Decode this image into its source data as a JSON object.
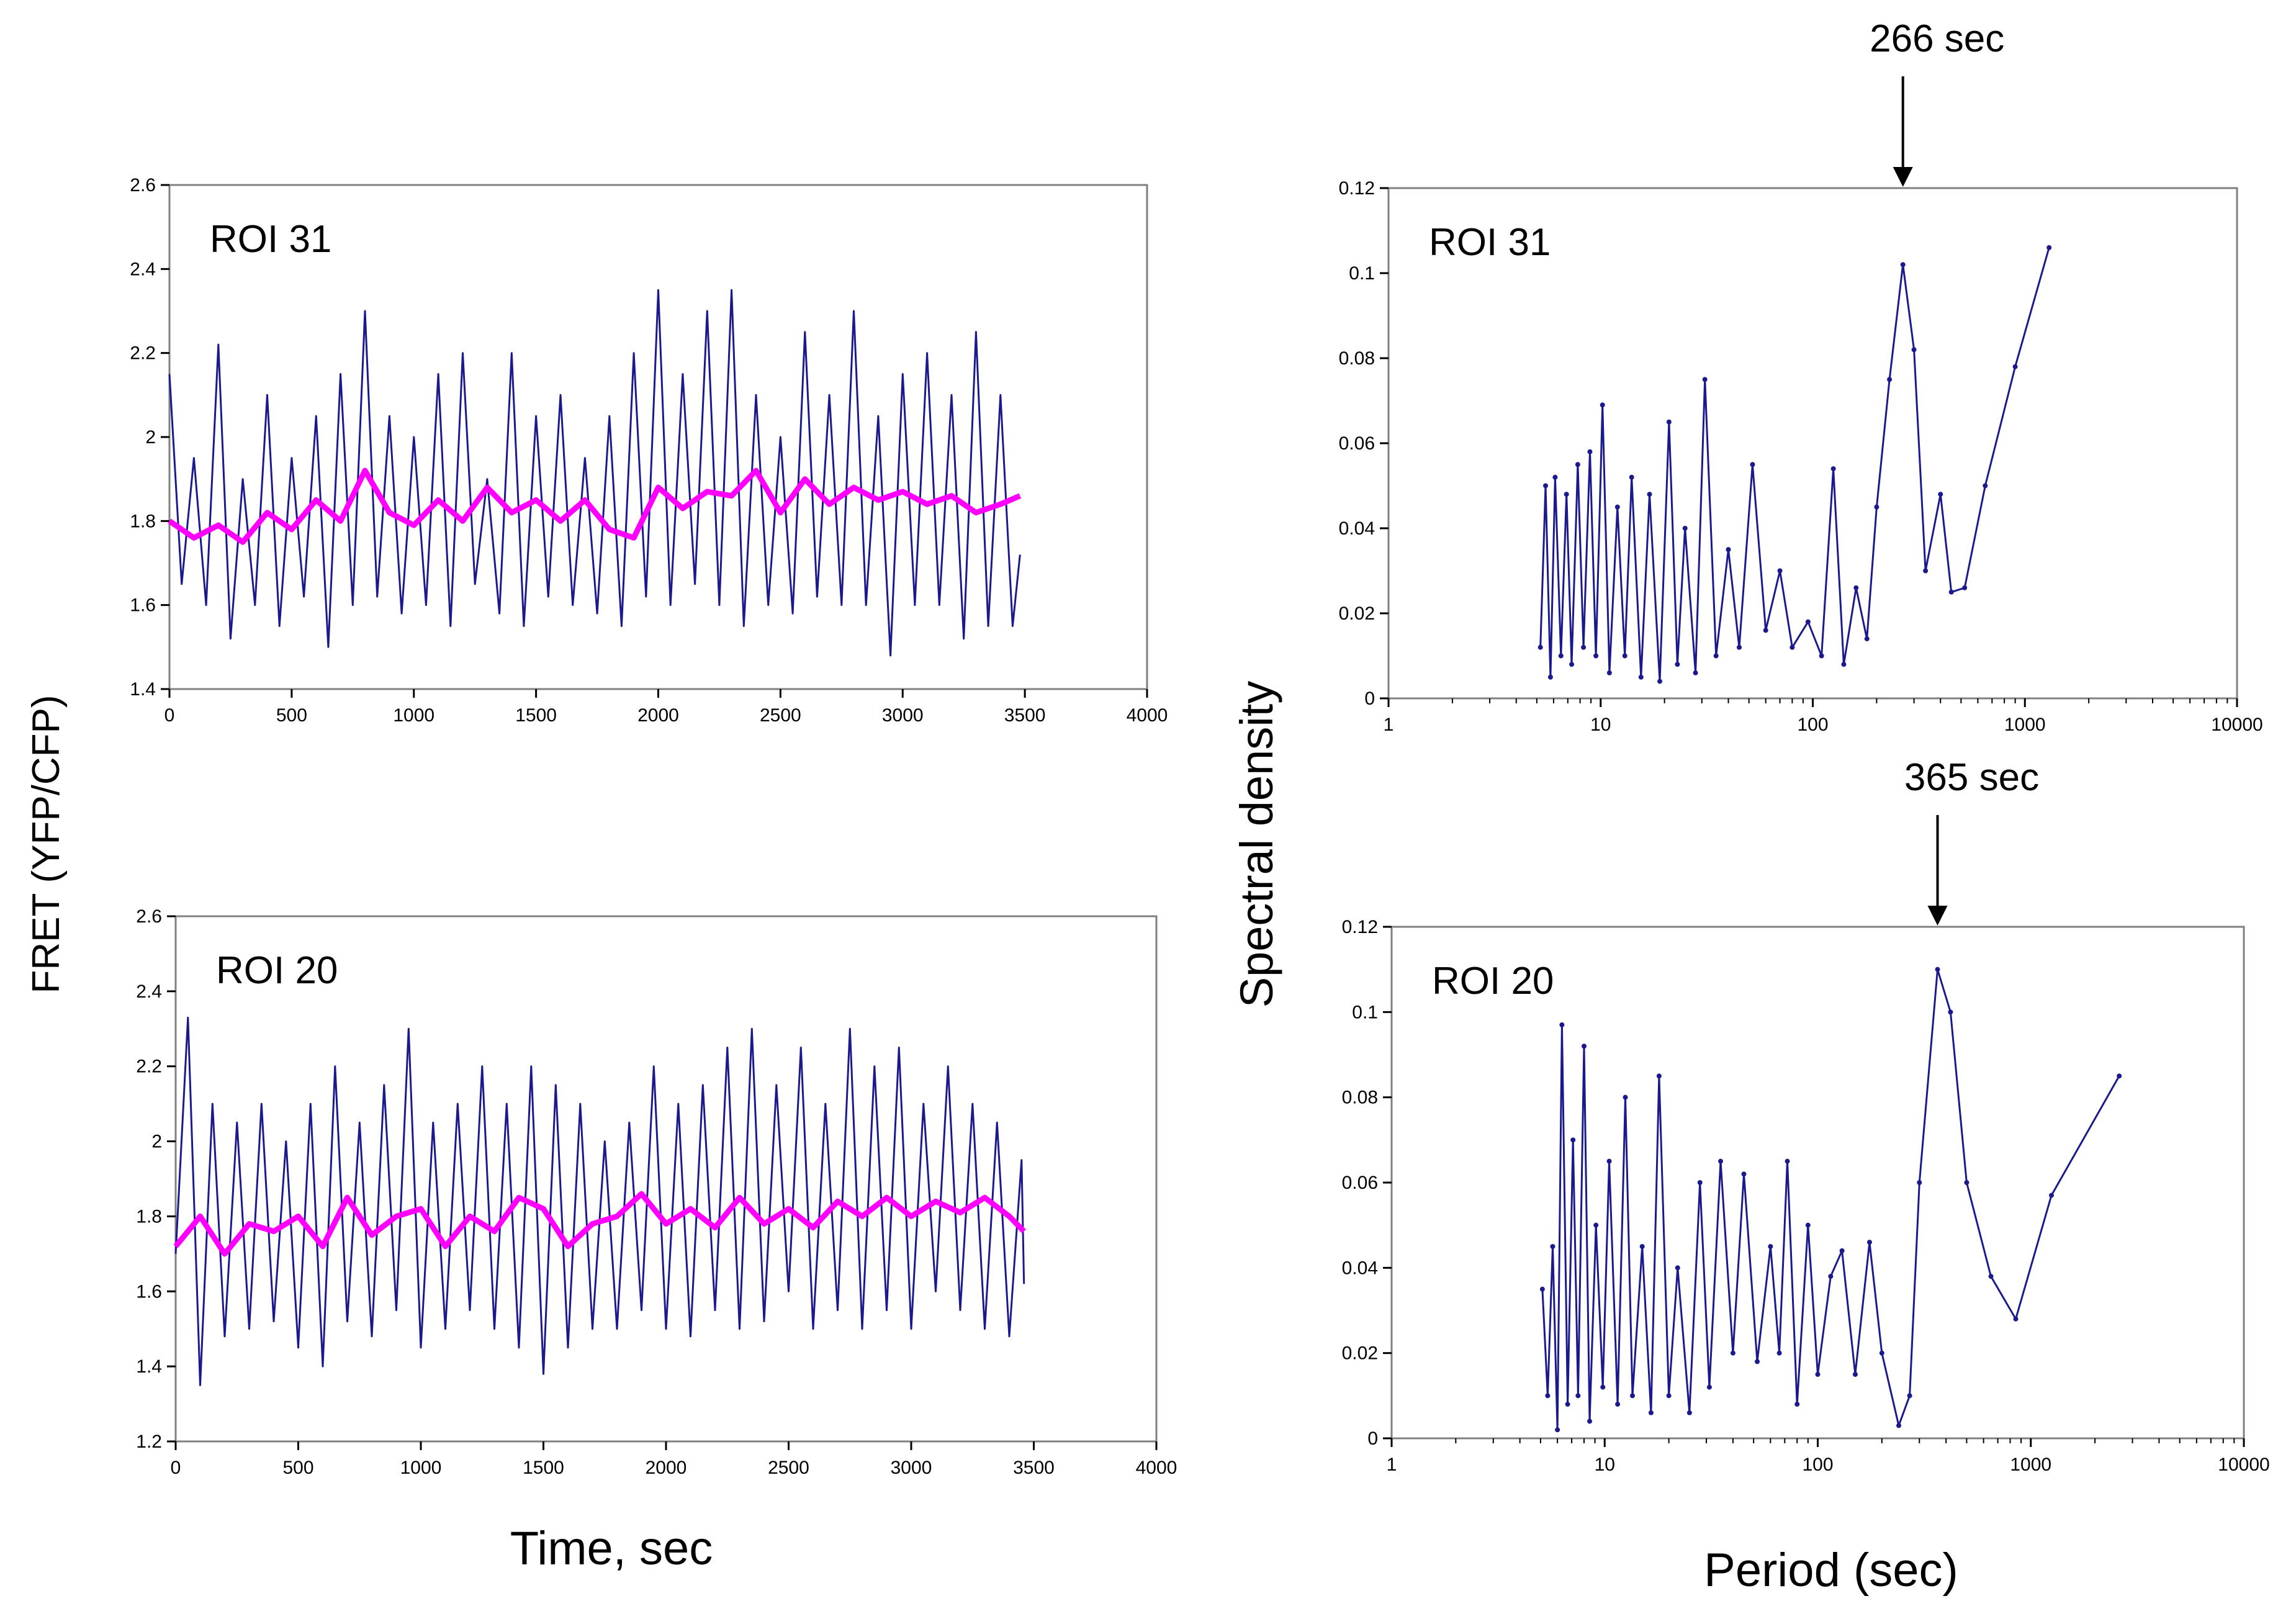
{
  "figure": {
    "left_ylabel": "FRET (YFP/CFP)",
    "left_xlabel": "Time, sec",
    "right_ylabel": "Spectral density",
    "right_xlabel": "Period (sec)",
    "trace_color": "#1a1a8c",
    "smooth_color": "#ff00ff",
    "spectrum_color": "#1a1a8c"
  },
  "chart_data": [
    {
      "type": "line",
      "title": "ROI 31",
      "xlabel": "Time, sec",
      "ylabel": "FRET (YFP/CFP)",
      "xlim": [
        0,
        4000
      ],
      "ylim": [
        1.4,
        2.6
      ],
      "x_ticks": [
        0,
        500,
        1000,
        1500,
        2000,
        2500,
        3000,
        3500,
        4000
      ],
      "y_ticks": [
        1.4,
        1.6,
        1.8,
        2.0,
        2.2,
        2.4,
        2.6
      ],
      "y_tick_labels": [
        "1.4",
        "1.6",
        "1.8",
        "2",
        "2.2",
        "2.4",
        "2.6"
      ],
      "series": [
        {
          "style": "raw trace (dark blue)",
          "x": [
            0,
            50,
            100,
            150,
            200,
            250,
            300,
            350,
            400,
            450,
            500,
            550,
            600,
            650,
            700,
            750,
            800,
            850,
            900,
            950,
            1000,
            1050,
            1100,
            1150,
            1200,
            1250,
            1300,
            1350,
            1400,
            1450,
            1500,
            1550,
            1600,
            1650,
            1700,
            1750,
            1800,
            1850,
            1900,
            1950,
            2000,
            2050,
            2100,
            2150,
            2200,
            2250,
            2300,
            2350,
            2400,
            2450,
            2500,
            2550,
            2600,
            2650,
            2700,
            2750,
            2800,
            2850,
            2900,
            2950,
            3000,
            3050,
            3100,
            3150,
            3200,
            3250,
            3300,
            3350,
            3400,
            3450,
            3480
          ],
          "y": [
            2.15,
            1.65,
            1.95,
            1.6,
            2.22,
            1.52,
            1.9,
            1.6,
            2.1,
            1.55,
            1.95,
            1.62,
            2.05,
            1.5,
            2.15,
            1.6,
            2.3,
            1.62,
            2.05,
            1.58,
            2.0,
            1.6,
            2.15,
            1.55,
            2.2,
            1.65,
            1.9,
            1.58,
            2.2,
            1.55,
            2.05,
            1.62,
            2.1,
            1.6,
            1.95,
            1.58,
            2.05,
            1.55,
            2.2,
            1.62,
            2.35,
            1.6,
            2.15,
            1.65,
            2.3,
            1.6,
            2.35,
            1.55,
            2.1,
            1.6,
            2.0,
            1.58,
            2.25,
            1.62,
            2.1,
            1.6,
            2.3,
            1.6,
            2.05,
            1.48,
            2.15,
            1.6,
            2.2,
            1.6,
            2.1,
            1.52,
            2.25,
            1.55,
            2.1,
            1.55,
            1.72
          ]
        },
        {
          "style": "moving average (magenta)",
          "x": [
            0,
            100,
            200,
            300,
            400,
            500,
            600,
            700,
            800,
            900,
            1000,
            1100,
            1200,
            1300,
            1400,
            1500,
            1600,
            1700,
            1800,
            1900,
            2000,
            2100,
            2200,
            2300,
            2400,
            2500,
            2600,
            2700,
            2800,
            2900,
            3000,
            3100,
            3200,
            3300,
            3400,
            3480
          ],
          "y": [
            1.8,
            1.76,
            1.79,
            1.75,
            1.82,
            1.78,
            1.85,
            1.8,
            1.92,
            1.82,
            1.79,
            1.85,
            1.8,
            1.88,
            1.82,
            1.85,
            1.8,
            1.85,
            1.78,
            1.76,
            1.88,
            1.83,
            1.87,
            1.86,
            1.92,
            1.82,
            1.9,
            1.84,
            1.88,
            1.85,
            1.87,
            1.84,
            1.86,
            1.82,
            1.84,
            1.86
          ]
        }
      ]
    },
    {
      "type": "line",
      "title": "ROI 20",
      "xlabel": "Time, sec",
      "ylabel": "FRET (YFP/CFP)",
      "xlim": [
        0,
        4000
      ],
      "ylim": [
        1.2,
        2.6
      ],
      "x_ticks": [
        0,
        500,
        1000,
        1500,
        2000,
        2500,
        3000,
        3500,
        4000
      ],
      "y_ticks": [
        1.2,
        1.4,
        1.6,
        1.8,
        2.0,
        2.2,
        2.4,
        2.6
      ],
      "y_tick_labels": [
        "1.2",
        "1.4",
        "1.6",
        "1.8",
        "2",
        "2.2",
        "2.4",
        "2.6"
      ],
      "series": [
        {
          "style": "raw trace (dark blue)",
          "x": [
            0,
            50,
            100,
            150,
            200,
            250,
            300,
            350,
            400,
            450,
            500,
            550,
            600,
            650,
            700,
            750,
            800,
            850,
            900,
            950,
            1000,
            1050,
            1100,
            1150,
            1200,
            1250,
            1300,
            1350,
            1400,
            1450,
            1500,
            1550,
            1600,
            1650,
            1700,
            1750,
            1800,
            1850,
            1900,
            1950,
            2000,
            2050,
            2100,
            2150,
            2200,
            2250,
            2300,
            2350,
            2400,
            2450,
            2500,
            2550,
            2600,
            2650,
            2700,
            2750,
            2800,
            2850,
            2900,
            2950,
            3000,
            3050,
            3100,
            3150,
            3200,
            3250,
            3300,
            3350,
            3400,
            3450,
            3460
          ],
          "y": [
            1.7,
            2.33,
            1.35,
            2.1,
            1.48,
            2.05,
            1.5,
            2.1,
            1.52,
            2.0,
            1.45,
            2.1,
            1.4,
            2.2,
            1.52,
            2.05,
            1.48,
            2.15,
            1.55,
            2.3,
            1.45,
            2.05,
            1.5,
            2.1,
            1.55,
            2.2,
            1.5,
            2.1,
            1.45,
            2.2,
            1.38,
            2.15,
            1.45,
            2.1,
            1.5,
            2.0,
            1.5,
            2.05,
            1.55,
            2.2,
            1.5,
            2.1,
            1.48,
            2.15,
            1.55,
            2.25,
            1.5,
            2.3,
            1.52,
            2.15,
            1.6,
            2.25,
            1.5,
            2.1,
            1.55,
            2.3,
            1.5,
            2.2,
            1.55,
            2.25,
            1.5,
            2.1,
            1.6,
            2.2,
            1.55,
            2.1,
            1.5,
            2.05,
            1.48,
            1.95,
            1.62
          ]
        },
        {
          "style": "moving average (magenta)",
          "x": [
            0,
            100,
            200,
            300,
            400,
            500,
            600,
            700,
            800,
            900,
            1000,
            1100,
            1200,
            1300,
            1400,
            1500,
            1600,
            1700,
            1800,
            1900,
            2000,
            2100,
            2200,
            2300,
            2400,
            2500,
            2600,
            2700,
            2800,
            2900,
            3000,
            3100,
            3200,
            3300,
            3400,
            3460
          ],
          "y": [
            1.72,
            1.8,
            1.7,
            1.78,
            1.76,
            1.8,
            1.72,
            1.85,
            1.75,
            1.8,
            1.82,
            1.72,
            1.8,
            1.76,
            1.85,
            1.82,
            1.72,
            1.78,
            1.8,
            1.86,
            1.78,
            1.82,
            1.77,
            1.85,
            1.78,
            1.82,
            1.77,
            1.84,
            1.8,
            1.85,
            1.8,
            1.84,
            1.81,
            1.85,
            1.8,
            1.76
          ]
        }
      ]
    },
    {
      "type": "line",
      "title": "ROI 31",
      "xlabel": "Period (sec)",
      "ylabel": "Spectral density",
      "xscale": "log",
      "xlim": [
        1,
        10000
      ],
      "ylim": [
        0,
        0.12
      ],
      "x_ticks": [
        1,
        10,
        100,
        1000,
        10000
      ],
      "x_tick_labels": [
        "1",
        "10",
        "100",
        "1000",
        "10000"
      ],
      "y_ticks": [
        0,
        0.02,
        0.04,
        0.06,
        0.08,
        0.1,
        0.12
      ],
      "y_tick_labels": [
        "0",
        "0.02",
        "0.04",
        "0.06",
        "0.08",
        "0.1",
        "0.12"
      ],
      "annotation": {
        "text": "266 sec",
        "x": 266
      },
      "series": [
        {
          "style": "spectrum with markers",
          "x": [
            5.2,
            5.5,
            5.8,
            6.1,
            6.5,
            6.9,
            7.3,
            7.8,
            8.3,
            8.9,
            9.5,
            10.2,
            11,
            12,
            13,
            14,
            15.5,
            17,
            19,
            21,
            23,
            25,
            28,
            31,
            35,
            40,
            45,
            52,
            60,
            70,
            80,
            95,
            110,
            125,
            140,
            160,
            180,
            200,
            230,
            266,
            300,
            340,
            400,
            450,
            520,
            650,
            900,
            1300
          ],
          "y": [
            0.012,
            0.05,
            0.005,
            0.052,
            0.01,
            0.048,
            0.008,
            0.055,
            0.012,
            0.058,
            0.01,
            0.069,
            0.006,
            0.045,
            0.01,
            0.052,
            0.005,
            0.048,
            0.004,
            0.065,
            0.008,
            0.04,
            0.006,
            0.075,
            0.01,
            0.035,
            0.012,
            0.055,
            0.016,
            0.03,
            0.012,
            0.018,
            0.01,
            0.054,
            0.008,
            0.026,
            0.014,
            0.045,
            0.075,
            0.102,
            0.082,
            0.03,
            0.048,
            0.025,
            0.026,
            0.05,
            0.078,
            0.106
          ]
        }
      ]
    },
    {
      "type": "line",
      "title": "ROI 20",
      "xlabel": "Period (sec)",
      "ylabel": "Spectral density",
      "xscale": "log",
      "xlim": [
        1,
        10000
      ],
      "ylim": [
        0,
        0.12
      ],
      "x_ticks": [
        1,
        10,
        100,
        1000,
        10000
      ],
      "x_tick_labels": [
        "1",
        "10",
        "100",
        "1000",
        "10000"
      ],
      "y_ticks": [
        0,
        0.02,
        0.04,
        0.06,
        0.08,
        0.1,
        0.12
      ],
      "y_tick_labels": [
        "0",
        "0.02",
        "0.04",
        "0.06",
        "0.08",
        "0.1",
        "0.12"
      ],
      "annotation": {
        "text": "365 sec",
        "x": 365
      },
      "series": [
        {
          "style": "spectrum with markers",
          "x": [
            5.1,
            5.4,
            5.7,
            6.0,
            6.3,
            6.7,
            7.1,
            7.5,
            8.0,
            8.5,
            9.1,
            9.8,
            10.5,
            11.5,
            12.5,
            13.5,
            15,
            16.5,
            18,
            20,
            22,
            25,
            28,
            31,
            35,
            40,
            45,
            52,
            60,
            66,
            72,
            80,
            90,
            100,
            115,
            130,
            150,
            175,
            200,
            240,
            270,
            300,
            365,
            420,
            500,
            650,
            850,
            1250,
            2600
          ],
          "y": [
            0.035,
            0.01,
            0.045,
            0.002,
            0.097,
            0.008,
            0.07,
            0.01,
            0.092,
            0.004,
            0.05,
            0.012,
            0.065,
            0.008,
            0.08,
            0.01,
            0.045,
            0.006,
            0.085,
            0.01,
            0.04,
            0.006,
            0.06,
            0.012,
            0.065,
            0.02,
            0.062,
            0.018,
            0.045,
            0.02,
            0.065,
            0.008,
            0.05,
            0.015,
            0.038,
            0.044,
            0.015,
            0.046,
            0.02,
            0.003,
            0.01,
            0.06,
            0.11,
            0.1,
            0.06,
            0.038,
            0.028,
            0.057,
            0.085
          ]
        }
      ]
    }
  ]
}
